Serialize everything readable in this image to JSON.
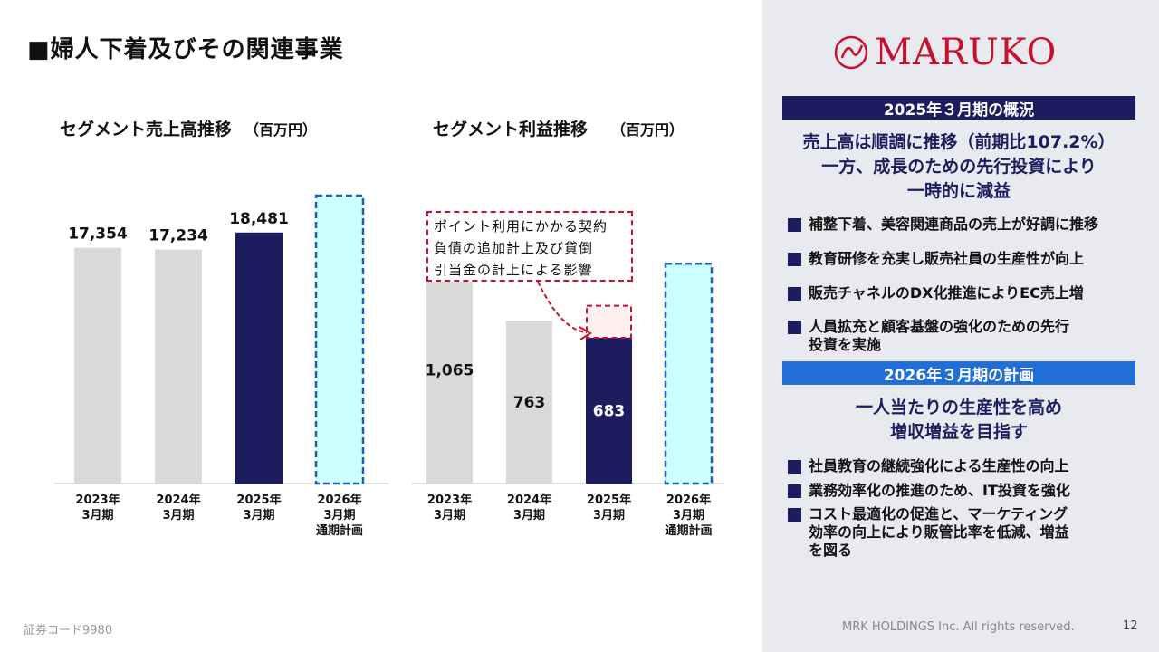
{
  "page": {
    "title": "■婦人下着及びその関連事業",
    "footer_left": "証券コード9980",
    "footer_right": "MRK HOLDINGS Inc. All rights reserved.",
    "page_number": "12"
  },
  "logo": {
    "text": "MARUKO",
    "color": "#c8102e"
  },
  "colors": {
    "navy": "#1b1d5e",
    "gray_bar": "#d9d9d9",
    "plan_fill": "#ccffff",
    "plan_border": "#1f5fb0",
    "red_dash": "#c8102e",
    "blue_header": "#1f6fd6"
  },
  "chart_data": [
    {
      "type": "bar",
      "title": "セグメント売上高推移",
      "unit": "（百万円）",
      "categories": [
        [
          "2023年",
          "3月期"
        ],
        [
          "2024年",
          "3月期"
        ],
        [
          "2025年",
          "3月期"
        ],
        [
          "2026年",
          "3月期",
          "通期計画"
        ]
      ],
      "values": [
        17354,
        17234,
        18481,
        null
      ],
      "value_labels": [
        "17,354",
        "17,234",
        "18,481",
        ""
      ],
      "plan_value": 21200,
      "ylim": [
        0,
        22000
      ],
      "styles": [
        "past",
        "past",
        "current",
        "plan"
      ]
    },
    {
      "type": "bar",
      "title": "セグメント利益推移",
      "unit": "（百万円）",
      "categories": [
        [
          "2023年",
          "3月期"
        ],
        [
          "2024年",
          "3月期"
        ],
        [
          "2025年",
          "3月期"
        ],
        [
          "2026年",
          "3月期",
          "通期計画"
        ]
      ],
      "values": [
        1065,
        763,
        683,
        null
      ],
      "value_labels": [
        "1,065",
        "763",
        "683",
        ""
      ],
      "dashed_extra": 150,
      "plan_value": 1030,
      "ylim": [
        0,
        1400
      ],
      "styles": [
        "past",
        "past",
        "current",
        "plan"
      ],
      "callout": [
        "ポイント利用にかかる契約",
        "負債の追加計上及び貸倒",
        "引当金の計上による影響"
      ]
    }
  ],
  "summary": {
    "header_2025": "2025年３月期の概況",
    "headline_2025": [
      "売上高は順調に推移（前期比107.2%）",
      "一方、成長のための先行投資により",
      "一時的に減益"
    ],
    "bullets_2025": [
      "補整下着、美容関連商品の売上が好調に推移",
      "教育研修を充実し販売社員の生産性が向上",
      "販売チャネルのDX化推進によりEC売上増",
      "人員拡充と顧客基盤の強化のための先行",
      "投資を実施"
    ],
    "header_2026": "2026年３月期の計画",
    "headline_2026": [
      "一人当たりの生産性を高め",
      "増収増益を目指す"
    ],
    "bullets_2026": [
      "社員教育の継続強化による生産性の向上",
      "業務効率化の推進のため、IT投資を強化",
      "コスト最適化の促進と、マーケティング",
      "効率の向上により販管比率を低減、増益",
      "を図る"
    ]
  }
}
